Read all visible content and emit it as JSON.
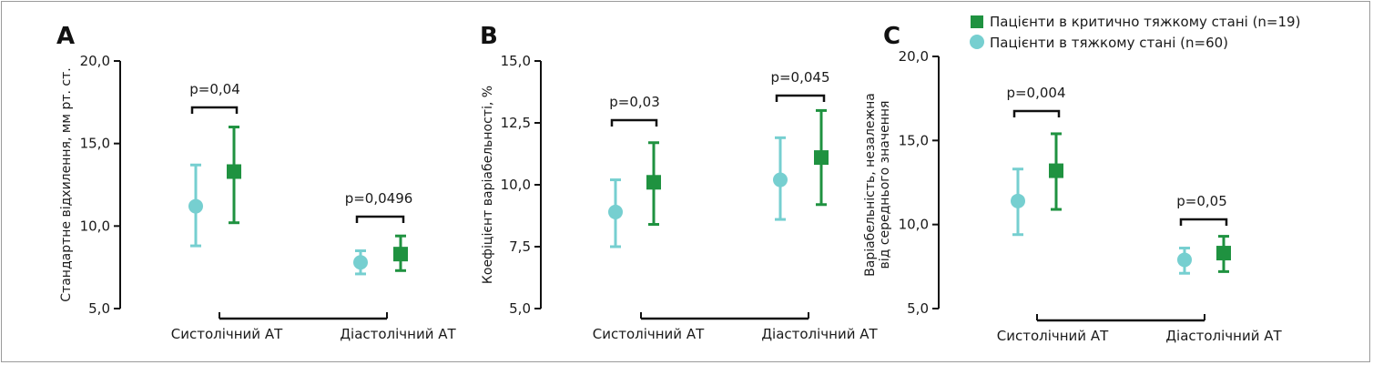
{
  "legend": {
    "critical_label": "Пацієнти в критично тяжкому стані (n=19)",
    "severe_label": "Пацієнти в тяжкому стані (n=60)"
  },
  "colors": {
    "critical": "#1f9240",
    "severe": "#76cfd0",
    "axis": "#111111",
    "text": "#1a1a1a"
  },
  "chart_data": [
    {
      "type": "scatter",
      "panel": "A",
      "ylabel": "Стандартне відхилення, мм рт. ст.",
      "ylim": [
        5.0,
        20.0
      ],
      "yticks": [
        "5,0",
        "10,0",
        "15,0",
        "20,0"
      ],
      "ytick_values": [
        5,
        10,
        15,
        20
      ],
      "categories": [
        "Систолічний АТ",
        "Діастолічний АТ"
      ],
      "series": [
        {
          "name": "Пацієнти в тяжкому стані (n=60)",
          "key": "severe",
          "mean": [
            11.2,
            7.8
          ],
          "lower": [
            8.8,
            7.1
          ],
          "upper": [
            13.7,
            8.5
          ]
        },
        {
          "name": "Пацієнти в критично тяжкому стані (n=19)",
          "key": "critical",
          "mean": [
            13.3,
            8.3
          ],
          "lower": [
            10.2,
            7.3
          ],
          "upper": [
            16.0,
            9.4
          ]
        }
      ],
      "pvalues": [
        "p=0,04",
        "p=0,0496"
      ]
    },
    {
      "type": "scatter",
      "panel": "B",
      "ylabel": "Коефіцієнт варіабельності, %",
      "ylim": [
        5.0,
        15.0
      ],
      "yticks": [
        "5,0",
        "7,5",
        "10,0",
        "12,5",
        "15,0"
      ],
      "ytick_values": [
        5,
        7.5,
        10,
        12.5,
        15
      ],
      "categories": [
        "Систолічний АТ",
        "Діастолічний АТ"
      ],
      "series": [
        {
          "name": "Пацієнти в тяжкому стані (n=60)",
          "key": "severe",
          "mean": [
            8.9,
            10.2
          ],
          "lower": [
            7.5,
            8.6
          ],
          "upper": [
            10.2,
            11.9
          ]
        },
        {
          "name": "Пацієнти в критично тяжкому стані (n=19)",
          "key": "critical",
          "mean": [
            10.1,
            11.1
          ],
          "lower": [
            8.4,
            9.2
          ],
          "upper": [
            11.7,
            13.0
          ]
        }
      ],
      "pvalues": [
        "p=0,03",
        "p=0,045"
      ]
    },
    {
      "type": "scatter",
      "panel": "C",
      "ylabel_line1": "Варіабельність, незалежна",
      "ylabel_line2": "від середнього значення",
      "ylim": [
        5.0,
        20.0
      ],
      "yticks": [
        "5,0",
        "10,0",
        "15,0",
        "20,0"
      ],
      "ytick_values": [
        5,
        10,
        15,
        20
      ],
      "categories": [
        "Систолічний АТ",
        "Діастолічний АТ"
      ],
      "series": [
        {
          "name": "Пацієнти в тяжкому стані (n=60)",
          "key": "severe",
          "mean": [
            11.4,
            7.9
          ],
          "lower": [
            9.4,
            7.1
          ],
          "upper": [
            13.3,
            8.6
          ]
        },
        {
          "name": "Пацієнти в критично тяжкому стані (n=19)",
          "key": "critical",
          "mean": [
            13.2,
            8.3
          ],
          "lower": [
            10.9,
            7.2
          ],
          "upper": [
            15.4,
            9.3
          ]
        }
      ],
      "pvalues": [
        "p=0,004",
        "p=0,05"
      ]
    }
  ]
}
